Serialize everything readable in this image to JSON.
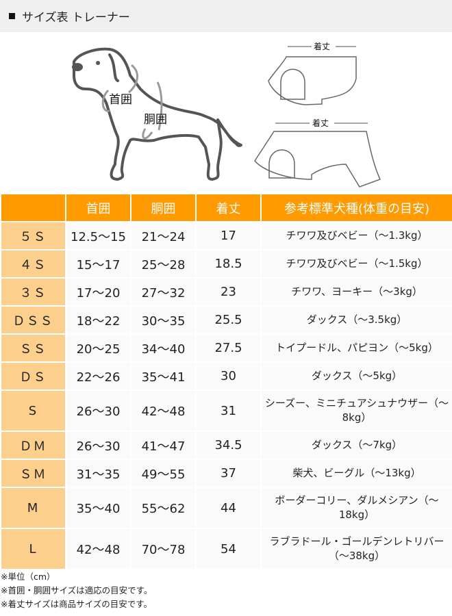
{
  "header": {
    "title": "サイズ表 トレーナー"
  },
  "illustration": {
    "neck_label": "首囲",
    "chest_label": "胴囲",
    "length_label_top": "着丈",
    "length_label_bottom": "着丈"
  },
  "table": {
    "columns": [
      "",
      "首囲",
      "胴囲",
      "着丈",
      "参考標準犬種(体重の目安)"
    ],
    "rows": [
      {
        "size": "５Ｓ",
        "neck": "12.5～15",
        "chest": "21～24",
        "length": "17",
        "breed": "チワワ及びベビー（～1.3kg）"
      },
      {
        "size": "４Ｓ",
        "neck": "15～17",
        "chest": "25～28",
        "length": "18.5",
        "breed": "チワワ及びベビー（～1.5kg）"
      },
      {
        "size": "３Ｓ",
        "neck": "17～20",
        "chest": "27～32",
        "length": "23",
        "breed": "チワワ、ヨーキー（～3kg）"
      },
      {
        "size": "ＤＳＳ",
        "neck": "18～22",
        "chest": "30～35",
        "length": "25.5",
        "breed": "ダックス（～3.5kg）"
      },
      {
        "size": "ＳＳ",
        "neck": "20～25",
        "chest": "34～40",
        "length": "27.5",
        "breed": "トイプードル、パピヨン（～5kg）"
      },
      {
        "size": "ＤＳ",
        "neck": "22～26",
        "chest": "35～41",
        "length": "30",
        "breed": "ダックス（～5kg）"
      },
      {
        "size": "S",
        "neck": "26～30",
        "chest": "42～48",
        "length": "31",
        "breed": "シーズー、ミニチュアシュナウザー（～8kg）"
      },
      {
        "size": "ＤＭ",
        "neck": "26～30",
        "chest": "41～47",
        "length": "34.5",
        "breed": "ダックス（～7kg）"
      },
      {
        "size": "ＳＭ",
        "neck": "31～35",
        "chest": "49～55",
        "length": "37",
        "breed": "柴犬、ビーグル（～13kg）"
      },
      {
        "size": "M",
        "neck": "35～40",
        "chest": "55～62",
        "length": "44",
        "breed": "ボーダーコリー、ダルメシアン（～18kg）"
      },
      {
        "size": "L",
        "neck": "42～48",
        "chest": "70～78",
        "length": "54",
        "breed": "ラブラドール・ゴールデンレトリバー（～38kg）"
      }
    ]
  },
  "notes": [
    "※単位（cm）",
    "※首囲・胴囲サイズは適応の目安です。",
    "※着丈サイズは商品サイズの目安です。"
  ],
  "colors": {
    "header_bg": "#ff9a00",
    "size_cell_bg": "#fdcf8d",
    "title_bar_bg": "#efefef"
  }
}
